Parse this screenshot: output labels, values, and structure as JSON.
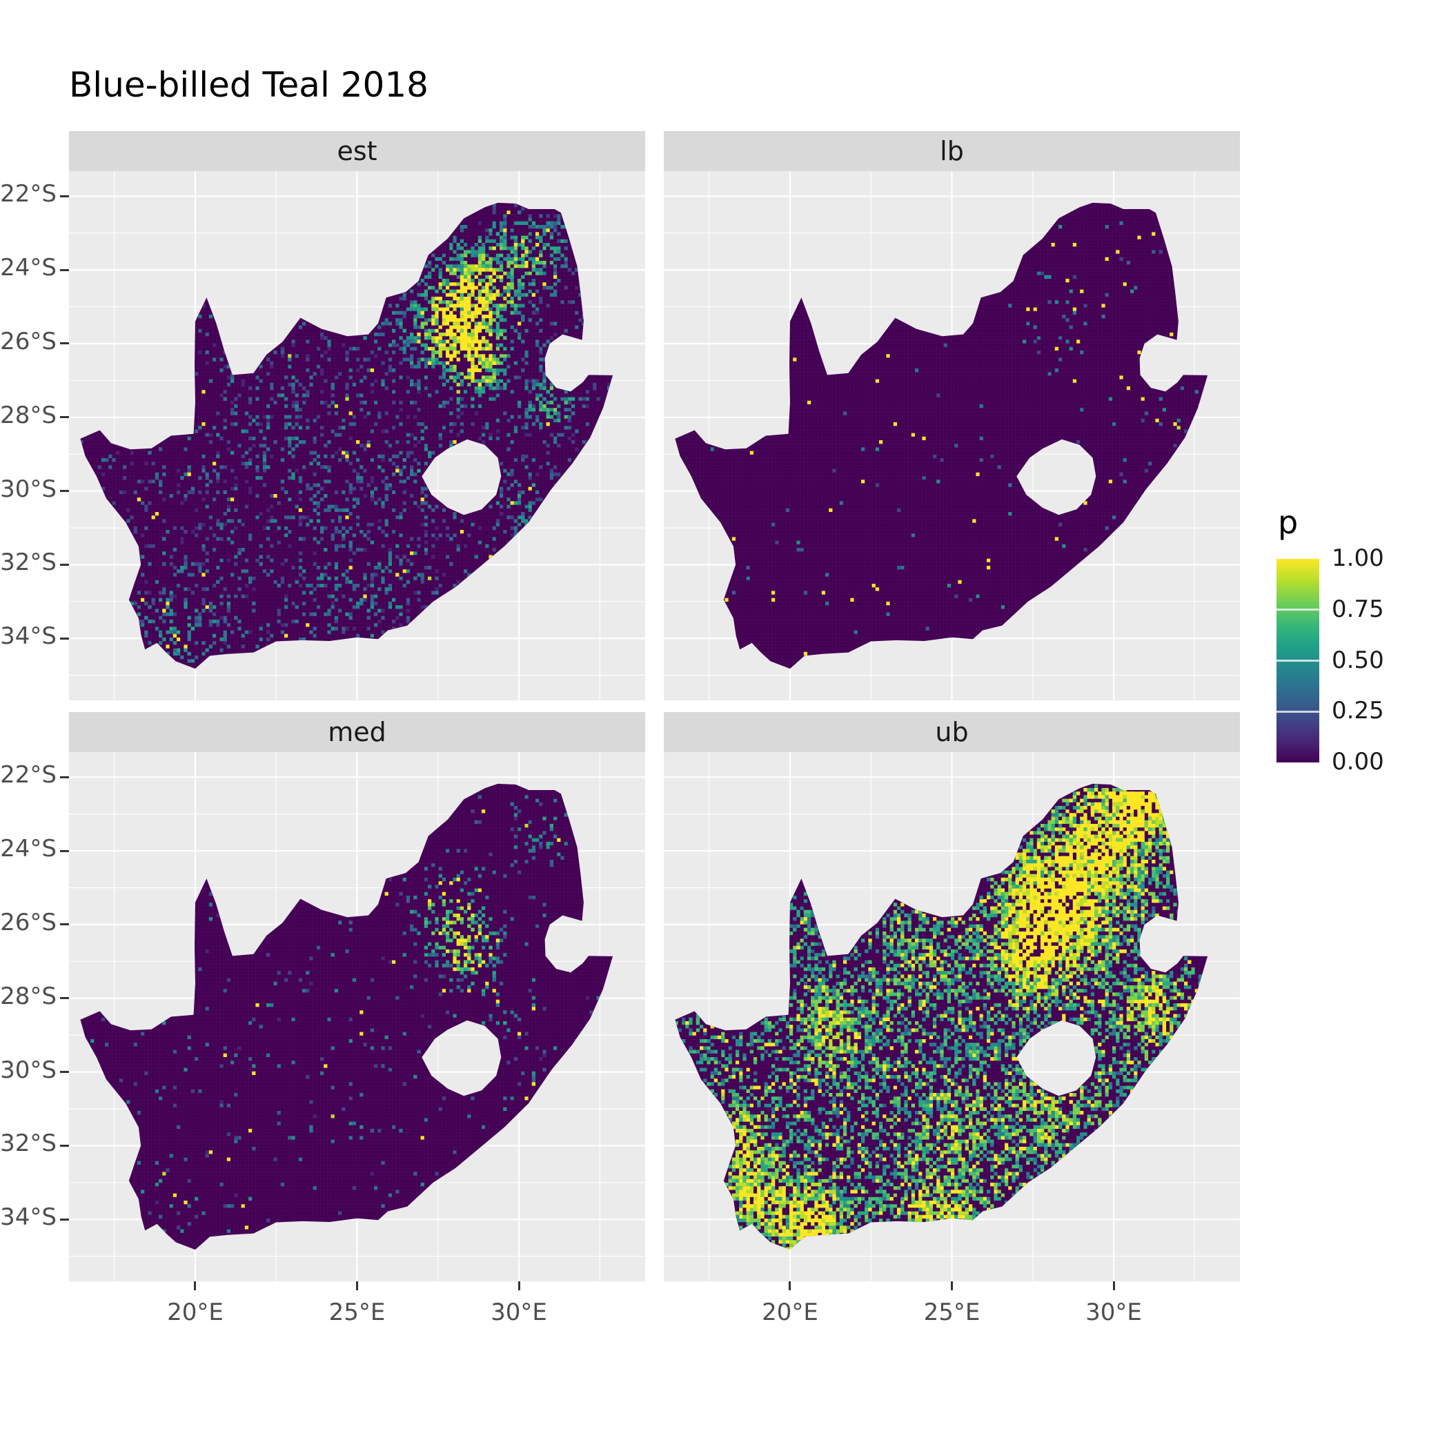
{
  "title": "Blue-billed Teal 2018",
  "chart_data": {
    "type": "heatmap",
    "subtype": "faceted_raster_probability_map",
    "region": "South Africa",
    "title": "Blue-billed Teal 2018",
    "facets": [
      "est",
      "lb",
      "med",
      "ub"
    ],
    "x_tick_labels": [
      "20°E",
      "25°E",
      "30°E"
    ],
    "x_tick_values": [
      20,
      25,
      30
    ],
    "y_tick_labels": [
      "22°S",
      "24°S",
      "26°S",
      "28°S",
      "30°S",
      "32°S",
      "34°S"
    ],
    "y_tick_values": [
      -22,
      -24,
      -26,
      -28,
      -30,
      -32,
      -34
    ],
    "xlim": [
      16.1,
      33.9
    ],
    "ylim": [
      -35.68,
      -21.32
    ],
    "legend_title": "p",
    "legend_tick_labels": [
      "1.00",
      "0.75",
      "0.50",
      "0.25",
      "0.00"
    ],
    "legend_tick_values": [
      1,
      0.75,
      0.5,
      0.25,
      0
    ],
    "colormap": "viridis",
    "viridis_stops": [
      [
        0,
        "#440154"
      ],
      [
        0.11,
        "#482878"
      ],
      [
        0.22,
        "#3E4A89"
      ],
      [
        0.33,
        "#31688E"
      ],
      [
        0.44,
        "#26828E"
      ],
      [
        0.56,
        "#1F9E89"
      ],
      [
        0.67,
        "#35B779"
      ],
      [
        0.78,
        "#6DCD59"
      ],
      [
        0.89,
        "#B4DE2C"
      ],
      [
        1,
        "#FDE725"
      ]
    ],
    "colors": {
      "panel_bg": "#EBEBEB",
      "strip_bg": "#D9D9D9",
      "grid_major": "#FFFFFF",
      "map_base": "#440154",
      "axis_text": "#4D4D4D",
      "strip_text": "#1A1A1A",
      "title_text": "#000000",
      "tick_mark": "#333333"
    },
    "map_outline": [
      [
        16.45,
        -28.58
      ],
      [
        17.05,
        -28.35
      ],
      [
        17.4,
        -28.7
      ],
      [
        18.0,
        -28.87
      ],
      [
        18.65,
        -28.84
      ],
      [
        19.25,
        -28.5
      ],
      [
        19.95,
        -28.45
      ],
      [
        20.0,
        -27.6
      ],
      [
        19.98,
        -26.6
      ],
      [
        20.0,
        -25.4
      ],
      [
        20.35,
        -24.75
      ],
      [
        20.65,
        -25.45
      ],
      [
        20.9,
        -26.2
      ],
      [
        21.15,
        -26.85
      ],
      [
        21.8,
        -26.8
      ],
      [
        22.2,
        -26.3
      ],
      [
        22.7,
        -25.95
      ],
      [
        23.25,
        -25.3
      ],
      [
        23.9,
        -25.6
      ],
      [
        24.7,
        -25.8
      ],
      [
        25.35,
        -25.75
      ],
      [
        25.65,
        -25.45
      ],
      [
        25.9,
        -24.75
      ],
      [
        26.5,
        -24.6
      ],
      [
        26.9,
        -24.3
      ],
      [
        27.2,
        -23.6
      ],
      [
        27.8,
        -23.15
      ],
      [
        28.3,
        -22.6
      ],
      [
        28.95,
        -22.3
      ],
      [
        29.35,
        -22.18
      ],
      [
        29.9,
        -22.2
      ],
      [
        30.3,
        -22.35
      ],
      [
        31.1,
        -22.35
      ],
      [
        31.3,
        -22.45
      ],
      [
        31.55,
        -23.15
      ],
      [
        31.8,
        -23.9
      ],
      [
        31.9,
        -24.6
      ],
      [
        32.0,
        -25.4
      ],
      [
        31.95,
        -25.9
      ],
      [
        31.35,
        -25.75
      ],
      [
        30.95,
        -26.0
      ],
      [
        30.8,
        -26.4
      ],
      [
        30.82,
        -26.85
      ],
      [
        31.15,
        -27.2
      ],
      [
        31.6,
        -27.3
      ],
      [
        31.97,
        -27.05
      ],
      [
        32.15,
        -26.85
      ],
      [
        32.9,
        -26.86
      ],
      [
        32.6,
        -27.75
      ],
      [
        32.2,
        -28.55
      ],
      [
        31.65,
        -29.25
      ],
      [
        31.0,
        -29.95
      ],
      [
        30.3,
        -30.85
      ],
      [
        29.55,
        -31.5
      ],
      [
        28.8,
        -32.05
      ],
      [
        28.05,
        -32.6
      ],
      [
        27.35,
        -33.0
      ],
      [
        26.55,
        -33.65
      ],
      [
        25.95,
        -33.78
      ],
      [
        25.65,
        -34.02
      ],
      [
        25.0,
        -33.97
      ],
      [
        24.15,
        -34.07
      ],
      [
        23.3,
        -34.05
      ],
      [
        22.5,
        -34.08
      ],
      [
        21.8,
        -34.38
      ],
      [
        21.0,
        -34.42
      ],
      [
        20.45,
        -34.47
      ],
      [
        20.0,
        -34.82
      ],
      [
        19.4,
        -34.62
      ],
      [
        19.1,
        -34.38
      ],
      [
        18.82,
        -34.12
      ],
      [
        18.45,
        -34.3
      ],
      [
        18.33,
        -33.92
      ],
      [
        18.25,
        -33.45
      ],
      [
        17.95,
        -32.95
      ],
      [
        18.12,
        -32.5
      ],
      [
        18.32,
        -32.0
      ],
      [
        18.25,
        -31.5
      ],
      [
        17.85,
        -30.85
      ],
      [
        17.25,
        -30.2
      ],
      [
        16.95,
        -29.6
      ],
      [
        16.6,
        -29.05
      ]
    ],
    "lesotho_hole": [
      [
        27.0,
        -29.6
      ],
      [
        27.4,
        -29.1
      ],
      [
        27.8,
        -28.85
      ],
      [
        28.4,
        -28.6
      ],
      [
        28.95,
        -28.75
      ],
      [
        29.35,
        -29.1
      ],
      [
        29.45,
        -29.6
      ],
      [
        29.3,
        -30.1
      ],
      [
        28.85,
        -30.5
      ],
      [
        28.3,
        -30.65
      ],
      [
        27.8,
        -30.45
      ],
      [
        27.3,
        -30.1
      ]
    ],
    "facet_patterns": {
      "est": {
        "seed": 11,
        "tries": 27000,
        "base": 0.1,
        "v_base": 0.1,
        "v_rand": 0.35,
        "v_gain": 1.1,
        "yellow_frac": 0.035,
        "hotspots": [
          [
            27.9,
            -25.4,
            1.9,
            0.75
          ],
          [
            28.6,
            -26.4,
            1.2,
            0.7
          ],
          [
            28.9,
            -24.2,
            1.6,
            0.55
          ],
          [
            30.4,
            -23.4,
            1.3,
            0.4
          ],
          [
            30.9,
            -27.6,
            1.0,
            0.45
          ],
          [
            30.2,
            -30.3,
            0.9,
            0.3
          ],
          [
            25.2,
            -32.2,
            2.6,
            0.12
          ],
          [
            19.6,
            -33.9,
            2.2,
            0.18
          ],
          [
            22.5,
            -28.7,
            2.5,
            0.08
          ],
          [
            27.2,
            -29.3,
            1.5,
            0.15
          ]
        ]
      },
      "lb": {
        "seed": 22,
        "tries": 24000,
        "base": 0.01,
        "v_base": 0.2,
        "v_rand": 0.3,
        "v_gain": 1.5,
        "yellow_frac": 0.3,
        "hotspots": [
          [
            28.2,
            -25.3,
            1.8,
            0.05
          ],
          [
            30.5,
            -23.3,
            1.1,
            0.04
          ],
          [
            31.5,
            -27.8,
            0.8,
            0.05
          ]
        ]
      },
      "med": {
        "seed": 33,
        "tries": 26000,
        "base": 0.022,
        "v_base": 0.15,
        "v_rand": 0.35,
        "v_gain": 1.2,
        "yellow_frac": 0.12,
        "hotspots": [
          [
            27.9,
            -25.9,
            1.6,
            0.4
          ],
          [
            28.4,
            -26.7,
            1.1,
            0.35
          ],
          [
            30.6,
            -23.4,
            1.0,
            0.15
          ],
          [
            29.8,
            -28.2,
            1.2,
            0.12
          ],
          [
            30.3,
            -30.3,
            0.7,
            0.12
          ],
          [
            19.6,
            -34.0,
            1.5,
            0.05
          ]
        ]
      },
      "ub": {
        "seed": 44,
        "tries": 30000,
        "base": 0.3,
        "v_base": 0.3,
        "v_rand": 0.45,
        "v_gain": 0.55,
        "yellow_frac": 0.1,
        "hotspots": [
          [
            28.3,
            -25.3,
            2.3,
            1.3
          ],
          [
            29.8,
            -23.3,
            1.8,
            1.0
          ],
          [
            27.5,
            -26.8,
            1.5,
            0.9
          ],
          [
            30.9,
            -22.8,
            1.2,
            0.9
          ],
          [
            31.2,
            -28.2,
            1.3,
            0.8
          ],
          [
            20.6,
            -34.3,
            1.8,
            1.0
          ],
          [
            18.9,
            -33.2,
            1.4,
            0.8
          ],
          [
            18.5,
            -31.8,
            1.2,
            0.6
          ],
          [
            21.3,
            -28.9,
            1.6,
            0.5
          ],
          [
            25.2,
            -31.8,
            2.4,
            0.35
          ],
          [
            28.2,
            -30.8,
            1.8,
            0.4
          ],
          [
            24.0,
            -26.5,
            2.0,
            0.3
          ],
          [
            24.5,
            -34.0,
            1.5,
            0.6
          ]
        ]
      }
    }
  }
}
